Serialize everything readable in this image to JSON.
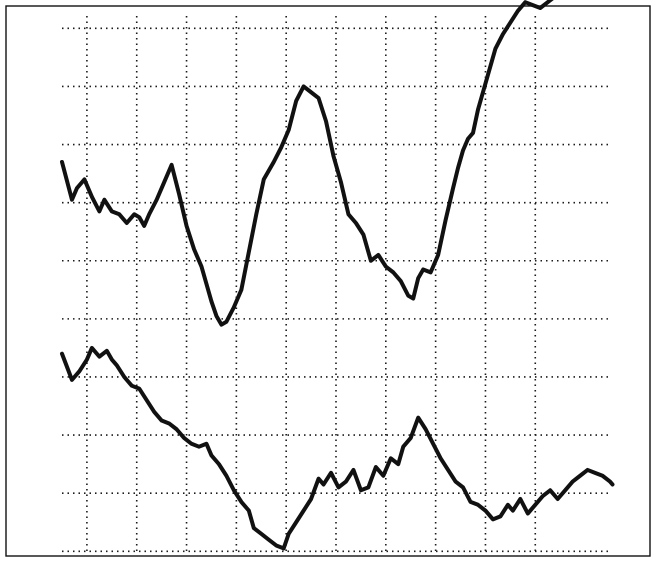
{
  "chart_data": {
    "type": "line",
    "title": "",
    "xlabel": "",
    "ylabel": "",
    "grid": true,
    "xlim": [
      0,
      11
    ],
    "ylim": [
      0,
      9.5
    ],
    "x_gridlines": [
      0.5,
      1.5,
      2.5,
      3.5,
      4.5,
      5.5,
      6.5,
      7.5,
      8.5,
      9.5
    ],
    "y_gridlines": [
      0.15,
      1.15,
      2.15,
      3.15,
      4.15,
      5.15,
      6.15,
      7.15,
      8.15,
      9.15
    ],
    "colors": {
      "trace": "#111111",
      "grid": "#1a1a1a",
      "frame": "#111111"
    },
    "series": [
      {
        "x": [
          0,
          0.2,
          0.3,
          0.45,
          0.6,
          0.75,
          0.85,
          1.0,
          1.15,
          1.3,
          1.45,
          1.55,
          1.65,
          1.75,
          1.9,
          2.05,
          2.2,
          2.35,
          2.5,
          2.65,
          2.8,
          2.9,
          3.0,
          3.1,
          3.2,
          3.3,
          3.45,
          3.6,
          3.75,
          3.9,
          4.05,
          4.25,
          4.4,
          4.55,
          4.7,
          4.85,
          5.0,
          5.15,
          5.3,
          5.45,
          5.6,
          5.75,
          5.9,
          6.05,
          6.2,
          6.35,
          6.5,
          6.65,
          6.8,
          6.95,
          7.05,
          7.15,
          7.25,
          7.4,
          7.55,
          7.7,
          7.85,
          7.95,
          8.05,
          8.15,
          8.25,
          8.35,
          8.45,
          8.55,
          8.7,
          8.85,
          9.0,
          9.15,
          9.3,
          9.45,
          9.6,
          9.75,
          9.9,
          10.05,
          10.2,
          10.35,
          10.5,
          10.65,
          10.8,
          10.95,
          11.05
        ],
        "y": [
          6.85,
          6.2,
          6.4,
          6.55,
          6.25,
          6.0,
          6.2,
          6.0,
          5.95,
          5.8,
          5.95,
          5.9,
          5.75,
          5.95,
          6.2,
          6.5,
          6.8,
          6.3,
          5.75,
          5.35,
          5.05,
          4.75,
          4.45,
          4.2,
          4.05,
          4.1,
          4.35,
          4.65,
          5.3,
          5.95,
          6.55,
          6.85,
          7.1,
          7.4,
          7.9,
          8.15,
          8.05,
          7.95,
          7.55,
          6.95,
          6.5,
          5.95,
          5.8,
          5.6,
          5.15,
          5.25,
          5.05,
          4.95,
          4.8,
          4.55,
          4.5,
          4.85,
          5.0,
          4.95,
          5.25,
          5.85,
          6.4,
          6.75,
          7.05,
          7.25,
          7.35,
          7.75,
          8.05,
          8.35,
          8.8,
          9.05,
          9.25,
          9.45,
          9.6,
          9.55,
          9.5,
          9.6,
          9.7,
          9.8,
          9.85,
          9.9,
          9.88,
          9.86,
          9.85,
          9.84,
          9.83
        ]
      },
      {
        "x": [
          0,
          0.2,
          0.35,
          0.5,
          0.6,
          0.75,
          0.9,
          1.0,
          1.1,
          1.25,
          1.4,
          1.55,
          1.7,
          1.85,
          2.0,
          2.15,
          2.3,
          2.45,
          2.6,
          2.75,
          2.9,
          3.0,
          3.15,
          3.3,
          3.45,
          3.6,
          3.75,
          3.85,
          4.0,
          4.15,
          4.3,
          4.45,
          4.55,
          4.7,
          4.85,
          5.0,
          5.15,
          5.25,
          5.4,
          5.55,
          5.7,
          5.85,
          6.0,
          6.15,
          6.3,
          6.45,
          6.6,
          6.75,
          6.85,
          7.0,
          7.15,
          7.3,
          7.45,
          7.6,
          7.75,
          7.9,
          8.05,
          8.2,
          8.35,
          8.5,
          8.65,
          8.8,
          8.95,
          9.05,
          9.2,
          9.35,
          9.5,
          9.65,
          9.8,
          9.95,
          10.1,
          10.25,
          10.4,
          10.55,
          10.7,
          10.85,
          11.0,
          11.05
        ],
        "y": [
          3.55,
          3.1,
          3.25,
          3.45,
          3.65,
          3.5,
          3.6,
          3.45,
          3.35,
          3.15,
          3.0,
          2.95,
          2.75,
          2.55,
          2.4,
          2.35,
          2.25,
          2.1,
          2.0,
          1.95,
          2.0,
          1.8,
          1.65,
          1.45,
          1.2,
          1.0,
          0.85,
          0.55,
          0.45,
          0.35,
          0.25,
          0.2,
          0.45,
          0.65,
          0.85,
          1.05,
          1.4,
          1.3,
          1.5,
          1.25,
          1.35,
          1.55,
          1.2,
          1.25,
          1.6,
          1.45,
          1.75,
          1.65,
          1.95,
          2.1,
          2.45,
          2.25,
          2.0,
          1.75,
          1.55,
          1.35,
          1.25,
          1.0,
          0.95,
          0.85,
          0.7,
          0.75,
          0.95,
          0.85,
          1.05,
          0.8,
          0.95,
          1.1,
          1.2,
          1.05,
          1.2,
          1.35,
          1.45,
          1.55,
          1.5,
          1.45,
          1.35,
          1.3
        ]
      }
    ]
  }
}
